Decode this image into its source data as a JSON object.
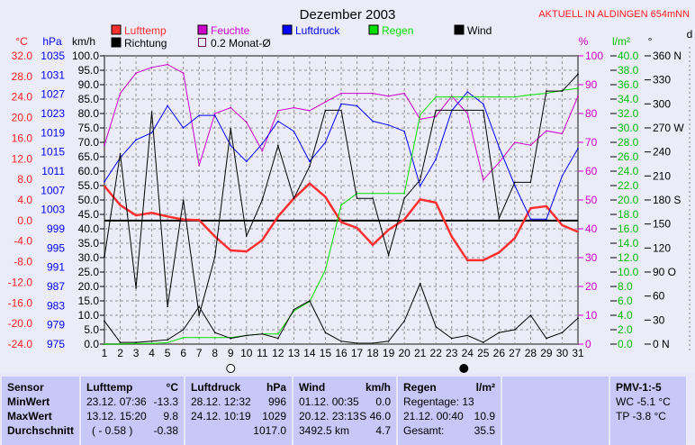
{
  "title": "Dezember 2003",
  "station": "AKTUELL IN ALDINGEN 654mNN",
  "legend": [
    {
      "label": "Lufttemp",
      "color": "#FF3030"
    },
    {
      "label": "Feuchte",
      "color": "#CC00CC"
    },
    {
      "label": "Luftdruck",
      "color": "#0000FF"
    },
    {
      "label": "Regen",
      "color": "#00E000"
    },
    {
      "label": "Wind",
      "color": "#000000"
    },
    {
      "label": "Richtung",
      "color": "#000000"
    },
    {
      "label": "0.2 Monat-Ø",
      "color": "#660066"
    }
  ],
  "chart_data": {
    "type": "line",
    "title": "Dezember 2003",
    "x": [
      1,
      2,
      3,
      4,
      5,
      6,
      7,
      8,
      9,
      10,
      11,
      12,
      13,
      14,
      15,
      16,
      17,
      18,
      19,
      20,
      21,
      22,
      23,
      24,
      25,
      26,
      27,
      28,
      29,
      30,
      31
    ],
    "axes": {
      "temp": {
        "unit": "°C",
        "range": [
          -24,
          32
        ],
        "ticks": [
          "32.0",
          "28.0",
          "24.0",
          "20.0",
          "16.0",
          "12.0",
          "8.0",
          "4.0",
          "0.0",
          "-4.0",
          "-8.0",
          "-12.0",
          "-16.0",
          "-20.0",
          "-24.0"
        ]
      },
      "pressure": {
        "unit": "hPa",
        "range": [
          975,
          1035
        ],
        "ticks": [
          "1035",
          "1031",
          "1027",
          "1023",
          "1019",
          "1015",
          "1011",
          "1007",
          "1003",
          "999",
          "995",
          "991",
          "987",
          "983",
          "979",
          "975"
        ]
      },
      "wind": {
        "unit": "km/h",
        "range": [
          0,
          100
        ],
        "ticks": [
          "100.0",
          "95.0",
          "90.0",
          "85.0",
          "80.0",
          "75.0",
          "70.0",
          "65.0",
          "60.0",
          "55.0",
          "50.0",
          "45.0",
          "40.0",
          "35.0",
          "30.0",
          "25.0",
          "20.0",
          "15.0",
          "10.0",
          "5.0",
          "0.0"
        ]
      },
      "humidity": {
        "unit": "%",
        "range": [
          0,
          100
        ],
        "ticks": [
          "100",
          "90",
          "80",
          "70",
          "60",
          "50",
          "40",
          "30",
          "20",
          "10",
          "0"
        ]
      },
      "rain": {
        "unit": "l/m²",
        "range": [
          0,
          40
        ],
        "ticks": [
          "40.0",
          "38.0",
          "36.0",
          "34.0",
          "32.0",
          "30.0",
          "28.0",
          "26.0",
          "24.0",
          "22.0",
          "20.0",
          "18.0",
          "16.0",
          "14.0",
          "12.0",
          "10.0",
          "8.0",
          "6.0",
          "4.0",
          "2.0",
          "0.0"
        ]
      },
      "direction": {
        "unit": "°",
        "range": [
          0,
          360
        ],
        "ticks": [
          "360 N",
          "330",
          "300",
          "270 W",
          "240",
          "210",
          "180 S",
          "150",
          "120",
          "90  O",
          "60",
          "30",
          "0   N"
        ]
      },
      "extra_unit": "d"
    },
    "series": [
      {
        "name": "Lufttemp",
        "axis": "temp",
        "color": "#FF3030",
        "values": [
          6.7,
          3.0,
          1.0,
          1.5,
          0.8,
          0.2,
          0.1,
          -3.1,
          -5.8,
          -6.0,
          -3.8,
          0.8,
          4.3,
          7.2,
          4.6,
          -0.3,
          -1.4,
          -4.7,
          -1.8,
          0.2,
          4.1,
          3.5,
          -3.1,
          -7.7,
          -7.7,
          -6.2,
          -3.4,
          2.4,
          2.8,
          -0.9,
          -2.2
        ]
      },
      {
        "name": "Feuchte",
        "axis": "humidity",
        "color": "#CC00CC",
        "values": [
          69,
          87,
          94,
          96,
          97,
          94,
          62,
          80,
          82,
          77,
          67,
          81,
          82,
          81,
          84,
          87,
          87,
          87,
          86,
          87,
          78,
          79,
          86,
          80,
          57,
          63,
          70,
          69,
          74,
          73,
          86
        ]
      },
      {
        "name": "Luftdruck",
        "axis": "pressure",
        "color": "#0000FF",
        "values": [
          1008.8,
          1013.8,
          1017.5,
          1019,
          1024.6,
          1020,
          1022.6,
          1022.6,
          1016.3,
          1013,
          1016.7,
          1021.4,
          1019.3,
          1013,
          1017,
          1025,
          1024.6,
          1021.4,
          1020.6,
          1019.3,
          1007.9,
          1013.5,
          1023.6,
          1027.5,
          1025,
          1016,
          1008,
          1001,
          1001,
          1010,
          1015.7
        ]
      },
      {
        "name": "Regen",
        "axis": "rain",
        "color": "#00E000",
        "values": [
          0,
          0,
          0.1,
          0.1,
          0.2,
          0.9,
          0.9,
          0.9,
          0.9,
          1.2,
          1.4,
          1.4,
          4.6,
          5.9,
          10.3,
          19.3,
          20.9,
          20.9,
          20.9,
          20.9,
          31.8,
          34.3,
          34.3,
          34.3,
          34.3,
          34.3,
          34.3,
          34.6,
          34.8,
          35.2,
          35.5
        ]
      },
      {
        "name": "Wind",
        "axis": "wind",
        "color": "#000000",
        "values": [
          8,
          0.6,
          0.6,
          1,
          1.5,
          5,
          13,
          4,
          2,
          3,
          3.5,
          2,
          12,
          15,
          4,
          1,
          0.3,
          0.3,
          1,
          8,
          21,
          6,
          2,
          3,
          0.6,
          4,
          5,
          10,
          2,
          4,
          9
        ]
      },
      {
        "name": "Richtung",
        "axis": "direction",
        "color": "#000000",
        "values": [
          109,
          238,
          70,
          290,
          47,
          180,
          36,
          109,
          269,
          135,
          180,
          248,
          182,
          222,
          292,
          292,
          182,
          182,
          111,
          182,
          205,
          292,
          292,
          292,
          292,
          157,
          202,
          202,
          316,
          316,
          337
        ]
      }
    ],
    "reference_line": {
      "axis": "temp",
      "value": 0
    },
    "moon": [
      {
        "day": 9,
        "phase": "full"
      },
      {
        "day": 24,
        "phase": "new"
      }
    ],
    "grid": true
  },
  "table": {
    "sensor": {
      "header": "Sensor",
      "rows": [
        "MinWert",
        "MaxWert",
        "Durchschnitt"
      ]
    },
    "temp": {
      "header": "Lufttemp",
      "unit": "°C",
      "rows": [
        [
          "23.12.  07:36",
          "-13.3"
        ],
        [
          "13.12.  15:20",
          "9.8"
        ],
        [
          "( - 0.58 )",
          "-0.38"
        ]
      ]
    },
    "pressure": {
      "header": "Luftdruck",
      "unit": "hPa",
      "rows": [
        [
          "28.12.  12:32",
          "996"
        ],
        [
          "24.12.  10:19",
          "1029"
        ],
        [
          "",
          "1017.0"
        ]
      ]
    },
    "wind": {
      "header": "Wind",
      "unit": "km/h",
      "rows": [
        [
          "01.12.  00:35",
          "0.0"
        ],
        [
          "20.12.  23:13",
          "S 46.0"
        ],
        [
          "3492.5 km",
          "4.7"
        ]
      ]
    },
    "rain": {
      "header": "Regen",
      "unit": "l/m²",
      "rows": [
        [
          "Regentage: 13",
          ""
        ],
        [
          "21.12.  00:40",
          "10.9"
        ],
        [
          "Gesamt:",
          "35.5"
        ]
      ]
    },
    "pmv": {
      "header": "PMV-1:-5",
      "rows": [
        "WC -5.1 °C",
        "TP -3.8 °C"
      ]
    }
  }
}
